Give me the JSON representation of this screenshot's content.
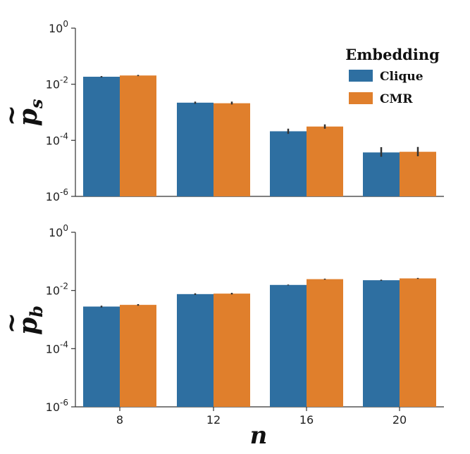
{
  "chart_data": [
    {
      "type": "bar",
      "scale": "log",
      "ylabel_base": "p",
      "ylabel_sub": "s",
      "ylabel_accent": "~",
      "ylim": [
        1e-06,
        1
      ],
      "yticks": [
        {
          "base": "10",
          "exp": "0",
          "value": 1
        },
        {
          "base": "10",
          "exp": "-2",
          "value": 0.01
        },
        {
          "base": "10",
          "exp": "-4",
          "value": 0.0001
        },
        {
          "base": "10",
          "exp": "-6",
          "value": 1e-06
        }
      ],
      "categories": [
        "8",
        "12",
        "16",
        "20"
      ],
      "series": [
        {
          "name": "Clique",
          "color": "#2e6fa1",
          "values": [
            0.0185,
            0.0022,
            0.00021,
            3.7e-05
          ],
          "err_low": [
            0.0175,
            0.002,
            0.00017,
            2.6e-05
          ],
          "err_high": [
            0.0195,
            0.0024,
            0.00026,
            5.7e-05
          ]
        },
        {
          "name": "CMR",
          "color": "#e07f2c",
          "values": [
            0.0205,
            0.0021,
            0.00031,
            3.9e-05
          ],
          "err_low": [
            0.0195,
            0.0019,
            0.00026,
            2.7e-05
          ],
          "err_high": [
            0.0215,
            0.0024,
            0.00037,
            5.8e-05
          ]
        }
      ],
      "legend": {
        "title": "Embedding",
        "position": "top-right"
      }
    },
    {
      "type": "bar",
      "scale": "log",
      "ylabel_base": "p",
      "ylabel_sub": "b",
      "ylabel_accent": "~",
      "ylim": [
        1e-06,
        1
      ],
      "yticks": [
        {
          "base": "10",
          "exp": "0",
          "value": 1
        },
        {
          "base": "10",
          "exp": "-2",
          "value": 0.01
        },
        {
          "base": "10",
          "exp": "-4",
          "value": 0.0001
        },
        {
          "base": "10",
          "exp": "-6",
          "value": 1e-06
        }
      ],
      "categories": [
        "8",
        "12",
        "16",
        "20"
      ],
      "xlabel": "n",
      "series": [
        {
          "name": "Clique",
          "color": "#2e6fa1",
          "values": [
            0.0028,
            0.0075,
            0.0155,
            0.0225
          ],
          "err_low": [
            0.0026,
            0.007,
            0.015,
            0.0215
          ],
          "err_high": [
            0.003,
            0.008,
            0.016,
            0.0235
          ]
        },
        {
          "name": "CMR",
          "color": "#e07f2c",
          "values": [
            0.0032,
            0.0078,
            0.0245,
            0.026
          ],
          "err_low": [
            0.003,
            0.0073,
            0.0235,
            0.025
          ],
          "err_high": [
            0.0034,
            0.0083,
            0.0255,
            0.027
          ]
        }
      ]
    }
  ]
}
